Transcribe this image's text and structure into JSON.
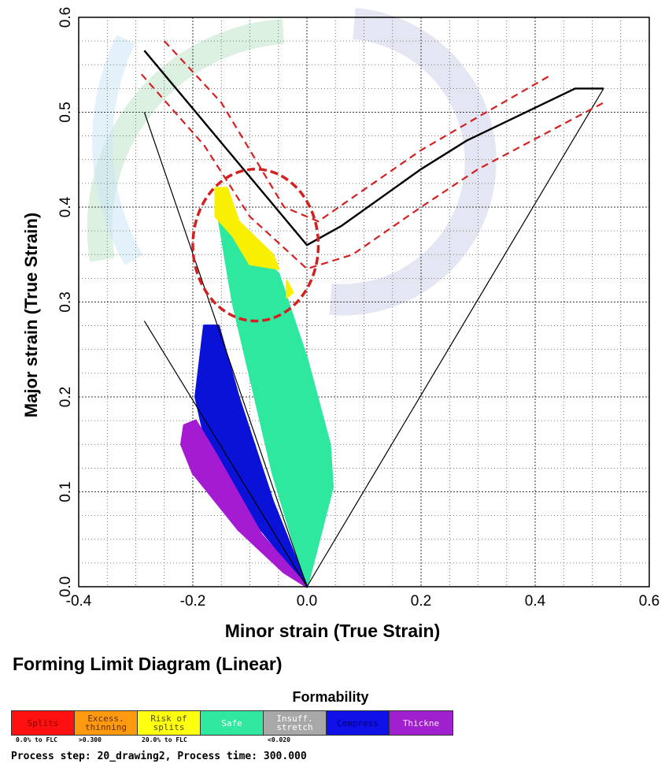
{
  "chart_data": {
    "type": "scatter",
    "title": "Forming Limit Diagram (Linear)",
    "xlabel": "Minor strain (True Strain)",
    "ylabel": "Major strain (True Strain)",
    "xlim": [
      -0.4,
      0.6
    ],
    "ylim": [
      0.0,
      0.6
    ],
    "xticks": [
      "-0.4",
      "-0.2",
      "0.0",
      "0.2",
      "0.4",
      "0.6"
    ],
    "yticks": [
      "0.0",
      "0.1",
      "0.2",
      "0.3",
      "0.4",
      "0.5",
      "0.6"
    ],
    "grid": true,
    "flc_curve": [
      [
        -0.285,
        0.565
      ],
      [
        0.0,
        0.36
      ],
      [
        0.06,
        0.38
      ],
      [
        0.2,
        0.44
      ],
      [
        0.28,
        0.47
      ],
      [
        0.47,
        0.525
      ],
      [
        0.52,
        0.525
      ]
    ],
    "flc_upper_margin": [
      [
        -0.25,
        0.575
      ],
      [
        -0.15,
        0.51
      ],
      [
        -0.04,
        0.4
      ],
      [
        0.02,
        0.385
      ],
      [
        0.08,
        0.41
      ],
      [
        0.2,
        0.46
      ],
      [
        0.3,
        0.495
      ],
      [
        0.43,
        0.54
      ]
    ],
    "flc_lower_margin": [
      [
        -0.29,
        0.54
      ],
      [
        -0.18,
        0.465
      ],
      [
        -0.1,
        0.39
      ],
      [
        0.0,
        0.335
      ],
      [
        0.08,
        0.35
      ],
      [
        0.2,
        0.4
      ],
      [
        0.3,
        0.44
      ],
      [
        0.52,
        0.51
      ]
    ],
    "reference_lines": [
      [
        [
          -0.285,
          0.5
        ],
        [
          0.0,
          0.0
        ]
      ],
      [
        [
          -0.285,
          0.28
        ],
        [
          0.0,
          0.0
        ]
      ],
      [
        [
          0.0,
          0.0
        ],
        [
          0.52,
          0.525
        ]
      ]
    ],
    "highlight_ellipse": {
      "cx": -0.09,
      "cy": 0.36,
      "rx": 0.11,
      "ry": 0.08
    },
    "zones": [
      {
        "name": "Safe",
        "color": "#2ee8a0",
        "polygon": [
          [
            -0.155,
            0.39
          ],
          [
            -0.12,
            0.37
          ],
          [
            -0.05,
            0.33
          ],
          [
            0.0,
            0.24
          ],
          [
            0.04,
            0.15
          ],
          [
            0.045,
            0.105
          ],
          [
            0.0,
            0.0
          ],
          [
            -0.06,
            0.12
          ],
          [
            -0.13,
            0.3
          ]
        ]
      },
      {
        "name": "Risk of splits",
        "color": "#f8f000",
        "polygon": [
          [
            -0.16,
            0.42
          ],
          [
            -0.14,
            0.42
          ],
          [
            -0.12,
            0.385
          ],
          [
            -0.06,
            0.35
          ],
          [
            -0.05,
            0.335
          ],
          [
            -0.1,
            0.34
          ],
          [
            -0.13,
            0.37
          ],
          [
            -0.16,
            0.39
          ]
        ]
      },
      {
        "name": "Risk of splits",
        "color": "#f8f000",
        "polygon": [
          [
            -0.035,
            0.322
          ],
          [
            -0.025,
            0.31
          ],
          [
            -0.035,
            0.305
          ]
        ]
      },
      {
        "name": "Compress",
        "color": "#0a12d8",
        "polygon": [
          [
            -0.18,
            0.275
          ],
          [
            -0.155,
            0.275
          ],
          [
            -0.12,
            0.2
          ],
          [
            -0.06,
            0.09
          ],
          [
            0.0,
            0.0
          ],
          [
            -0.08,
            0.06
          ],
          [
            -0.18,
            0.16
          ],
          [
            -0.195,
            0.2
          ]
        ]
      },
      {
        "name": "Thickening",
        "color": "#a41bd2",
        "polygon": [
          [
            -0.215,
            0.17
          ],
          [
            -0.195,
            0.175
          ],
          [
            -0.16,
            0.14
          ],
          [
            -0.08,
            0.055
          ],
          [
            0.0,
            0.0
          ],
          [
            -0.04,
            0.015
          ],
          [
            -0.12,
            0.06
          ],
          [
            -0.2,
            0.12
          ],
          [
            -0.22,
            0.15
          ]
        ]
      }
    ]
  },
  "legend": {
    "title": "Formability",
    "items": [
      {
        "label": "Splits",
        "color": "#ff1010",
        "text_color": "#8b0000",
        "sub": "0.0% to FLC"
      },
      {
        "label": "Excess. thinning",
        "color": "#ff9a10",
        "text_color": "#603000",
        "sub": ">0.300"
      },
      {
        "label": "Risk of splits",
        "color": "#ffff10",
        "text_color": "#505000",
        "sub": "20.0% to FLC"
      },
      {
        "label": "Safe",
        "color": "#30e8a0",
        "text_color": "#ffffff",
        "sub": ""
      },
      {
        "label": "Insuff. stretch",
        "color": "#a8a8a8",
        "text_color": "#ffffff",
        "sub": "<0.020"
      },
      {
        "label": "Compress",
        "color": "#1010e8",
        "text_color": "#000080",
        "sub": ""
      },
      {
        "label": "Thickne",
        "color": "#a020d0",
        "text_color": "#ffe0ff",
        "sub": ""
      }
    ]
  },
  "footer": "Process step: 20_drawing2, Process time: 300.000"
}
